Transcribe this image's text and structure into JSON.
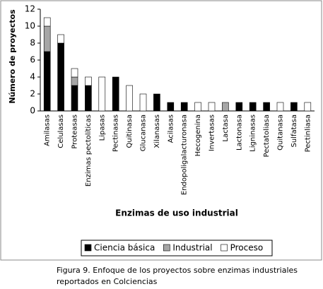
{
  "chart_data": {
    "type": "stacked_bar",
    "xlabel": "Enzimas de uso industrial",
    "ylabel": "Número de proyectos",
    "categories": [
      "Amilasas",
      "Celulasas",
      "Proteasas",
      "Enzimas pectolíticas",
      "Lipasas",
      "Pectinasas",
      "Quitinasa",
      "Glucanasa",
      "Xilanasas",
      "Acilasas",
      "Endopoligalacturonasa",
      "Hecogenina",
      "Invertasas",
      "Lactasa",
      "Lactonasa",
      "Ligninasas",
      "Pectatoliasa",
      "Quitanasa",
      "Sulfatasa",
      "Pectinliasa"
    ],
    "series": [
      {
        "name": "Ciencia básica",
        "color": "#000000",
        "values": [
          7,
          8,
          3,
          3,
          0,
          4,
          0,
          0,
          2,
          1,
          1,
          0,
          0,
          0,
          1,
          1,
          1,
          0,
          1,
          0
        ]
      },
      {
        "name": "Industrial",
        "color": "#a6a6a6",
        "values": [
          3,
          0,
          1,
          0,
          0,
          0,
          0,
          0,
          0,
          0,
          0,
          0,
          0,
          1,
          0,
          0,
          0,
          0,
          0,
          0
        ]
      },
      {
        "name": "Proceso",
        "color": "#ffffff",
        "values": [
          1,
          1,
          1,
          1,
          4,
          0,
          3,
          2,
          0,
          0,
          0,
          1,
          1,
          0,
          0,
          0,
          0,
          1,
          0,
          1
        ]
      }
    ],
    "ylim": [
      0,
      12
    ],
    "yticks": [
      0,
      2,
      4,
      6,
      8,
      10,
      12
    ],
    "grid": false,
    "legend": "bottom",
    "caption": [
      "Figura 9. Enfoque de los proyectos sobre enzimas industriales",
      "reportados  en Colciencias"
    ]
  }
}
